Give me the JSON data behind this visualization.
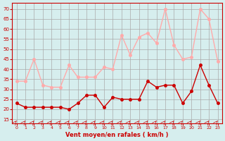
{
  "hours": [
    0,
    1,
    2,
    3,
    4,
    5,
    6,
    7,
    8,
    9,
    10,
    11,
    12,
    13,
    14,
    15,
    16,
    17,
    18,
    19,
    20,
    21,
    22,
    23
  ],
  "wind_mean": [
    23,
    21,
    21,
    21,
    21,
    21,
    20,
    23,
    27,
    27,
    21,
    26,
    25,
    25,
    25,
    34,
    31,
    32,
    32,
    23,
    29,
    42,
    32,
    23
  ],
  "wind_gust": [
    34,
    34,
    45,
    32,
    31,
    31,
    42,
    36,
    36,
    36,
    41,
    40,
    57,
    47,
    56,
    58,
    53,
    70,
    52,
    45,
    46,
    70,
    65,
    44
  ],
  "bg_color": "#d6eeee",
  "grid_color": "#aaaaaa",
  "mean_color": "#cc0000",
  "gust_color": "#ffaaaa",
  "xlabel": "Vent moyen/en rafales ( km/h )",
  "xlabel_color": "#cc0000",
  "yticks": [
    15,
    20,
    25,
    30,
    35,
    40,
    45,
    50,
    55,
    60,
    65,
    70
  ],
  "ylim": [
    13,
    73
  ],
  "title_color": "#cc0000"
}
